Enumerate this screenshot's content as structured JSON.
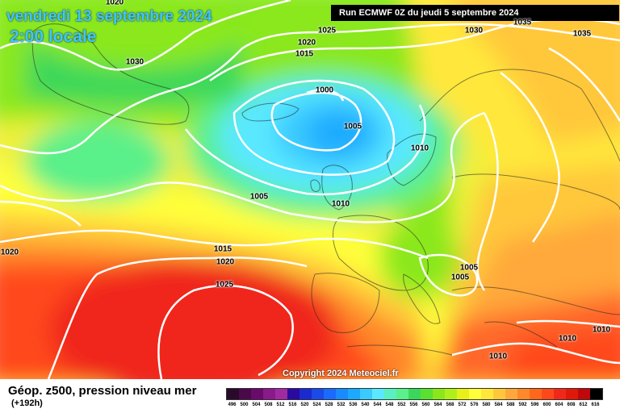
{
  "header": {
    "date": "vendredi 13 septembre 2024",
    "local_time": "2:00 locale",
    "run": "Run ECMWF 0Z du jeudi 5 septembre 2024"
  },
  "copyright": "Copyright 2024 Meteociel.fr",
  "legend": {
    "title": "Géop. z500, pression niveau mer",
    "subtitle": "(+192h)",
    "values": [
      "496",
      "500",
      "504",
      "508",
      "512",
      "516",
      "520",
      "524",
      "528",
      "532",
      "536",
      "540",
      "544",
      "548",
      "552",
      "556",
      "560",
      "564",
      "568",
      "572",
      "576",
      "580",
      "584",
      "588",
      "592",
      "596",
      "600",
      "604",
      "608",
      "612",
      "616"
    ],
    "colors": [
      "#2a0a2a",
      "#4a0a4a",
      "#6a0a6a",
      "#8a1a8a",
      "#a02aa0",
      "#2a0aa0",
      "#1a2ad0",
      "#1a4ae8",
      "#1a6aff",
      "#1a8aff",
      "#1aaaff",
      "#3acaff",
      "#5ae8ff",
      "#5af0c0",
      "#5af08a",
      "#3ad85a",
      "#5ae030",
      "#8ae81a",
      "#b0f01a",
      "#e8f01a",
      "#ffff3a",
      "#ffe83a",
      "#ffc83a",
      "#ffa83a",
      "#ff882a",
      "#ff681a",
      "#ff481a",
      "#f0281a",
      "#e0180a",
      "#c0080a",
      "#000000"
    ]
  },
  "isobar_labels": [
    "1020",
    "1030",
    "1025",
    "1020",
    "1015",
    "1030",
    "1035",
    "1035",
    "1000",
    "1005",
    "1010",
    "1005",
    "1010",
    "1015",
    "1020",
    "1025",
    "1020",
    "1005",
    "1005",
    "1010",
    "1010",
    "1010"
  ],
  "colors": {
    "title_cyan": "#3cc8ff",
    "isobar": "#ffffff"
  }
}
